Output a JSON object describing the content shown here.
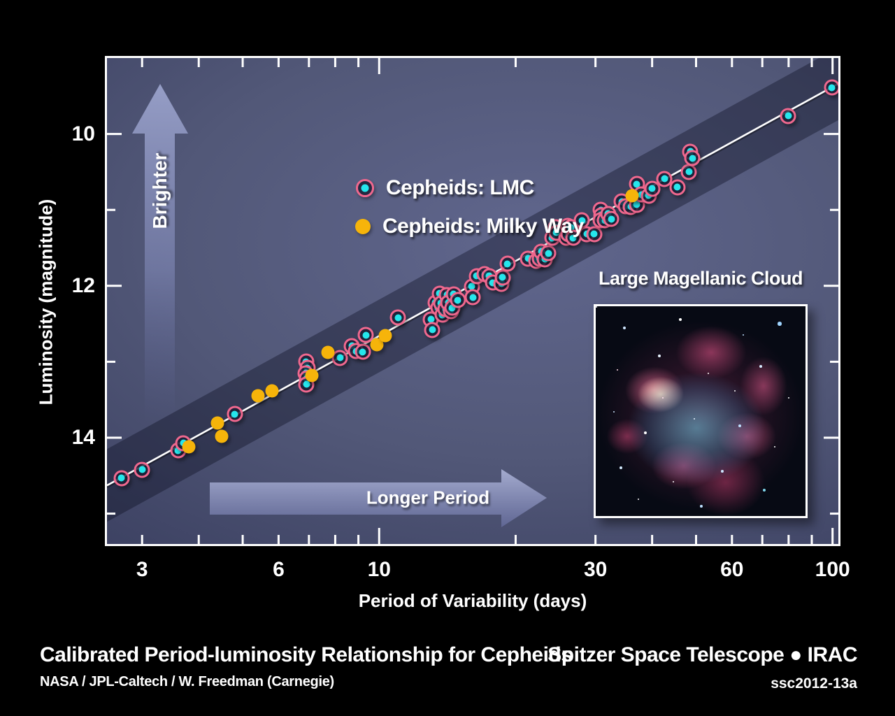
{
  "colors": {
    "background": "#000000",
    "lmc_dot": "#25e6ec",
    "lmc_ring": "#f0688e",
    "milky_way_dot": "#f6b40a",
    "trend_line": "#ffffff",
    "arrow_fill": "#8d95c2"
  },
  "legend": {
    "items": [
      {
        "label": "Cepheids: LMC",
        "marker": "cyan-dot-pink-ring"
      },
      {
        "label": "Cepheids: Milky Way",
        "marker": "yellow-dot"
      }
    ]
  },
  "annotations": {
    "brighter_arrow_label": "Brighter",
    "longer_period_arrow_label": "Longer Period",
    "inset_title": "Large Magellanic Cloud"
  },
  "footer": {
    "title": "Calibrated Period-luminosity Relationship for Cepheids",
    "credit": "NASA / JPL-Caltech / W. Freedman (Carnegie)",
    "mission": "Spitzer Space Telescope ● IRAC",
    "release_id": "ssc2012-13a"
  },
  "chart_data": {
    "type": "scatter",
    "x_scale": "log",
    "xlabel": "Period of Variability (days)",
    "ylabel": "Luminosity (magnitude)",
    "y_axis_inverted": true,
    "xlim": [
      2.51,
      103
    ],
    "ylim_mag": [
      9.0,
      15.4
    ],
    "x_ticks": [
      3,
      4,
      5,
      6,
      7,
      8,
      9,
      10,
      20,
      30,
      40,
      50,
      60,
      70,
      80,
      90,
      100
    ],
    "x_major_ticks": [
      10,
      100
    ],
    "x_tick_labels": [
      3,
      6,
      10,
      30,
      60,
      100
    ],
    "y_ticks": [
      9,
      10,
      11,
      12,
      13,
      14,
      15
    ],
    "y_major_ticks": [
      10,
      12,
      14
    ],
    "y_tick_labels": [
      10,
      12,
      14
    ],
    "trend_line": {
      "mag_at_10_days": 12.66,
      "slope_mag_per_decade": -3.28,
      "band_halfwidth_mag": 0.35
    },
    "series": [
      {
        "name": "Cepheids: LMC",
        "marker": "cyan-dot-pink-ring",
        "points": [
          [
            2.7,
            14.53
          ],
          [
            3.0,
            14.42
          ],
          [
            3.6,
            14.17
          ],
          [
            3.7,
            14.07
          ],
          [
            4.8,
            13.69
          ],
          [
            6.9,
            13.0
          ],
          [
            6.95,
            13.08
          ],
          [
            6.89,
            13.15
          ],
          [
            6.92,
            13.22
          ],
          [
            6.91,
            13.3
          ],
          [
            8.2,
            12.95
          ],
          [
            8.7,
            12.79
          ],
          [
            8.9,
            12.86
          ],
          [
            9.2,
            12.87
          ],
          [
            9.35,
            12.65
          ],
          [
            11.0,
            12.42
          ],
          [
            13.0,
            12.44
          ],
          [
            13.1,
            12.58
          ],
          [
            13.3,
            12.22
          ],
          [
            13.5,
            12.29
          ],
          [
            13.6,
            12.1
          ],
          [
            13.7,
            12.23
          ],
          [
            13.8,
            12.38
          ],
          [
            14.0,
            12.31
          ],
          [
            14.1,
            12.12
          ],
          [
            14.2,
            12.22
          ],
          [
            14.4,
            12.33
          ],
          [
            14.5,
            12.29
          ],
          [
            14.6,
            12.11
          ],
          [
            14.9,
            12.19
          ],
          [
            16.0,
            12.01
          ],
          [
            16.1,
            12.15
          ],
          [
            16.4,
            11.87
          ],
          [
            17.1,
            11.85
          ],
          [
            17.5,
            11.87
          ],
          [
            17.8,
            11.96
          ],
          [
            18.6,
            11.97
          ],
          [
            18.7,
            11.89
          ],
          [
            19.2,
            11.71
          ],
          [
            21.3,
            11.64
          ],
          [
            22.2,
            11.67
          ],
          [
            22.6,
            11.64
          ],
          [
            22.8,
            11.55
          ],
          [
            23.2,
            11.65
          ],
          [
            23.6,
            11.57
          ],
          [
            24.1,
            11.37
          ],
          [
            24.5,
            11.23
          ],
          [
            24.6,
            11.3
          ],
          [
            25.9,
            11.37
          ],
          [
            26.1,
            11.21
          ],
          [
            26.2,
            11.32
          ],
          [
            26.5,
            11.23
          ],
          [
            26.8,
            11.37
          ],
          [
            28.0,
            11.14
          ],
          [
            28.7,
            11.32
          ],
          [
            29.8,
            11.32
          ],
          [
            30.8,
            11.0
          ],
          [
            30.9,
            11.07
          ],
          [
            30.8,
            11.14
          ],
          [
            31.5,
            11.14
          ],
          [
            32.0,
            11.05
          ],
          [
            32.5,
            11.12
          ],
          [
            34.3,
            10.89
          ],
          [
            35.0,
            10.95
          ],
          [
            35.9,
            10.96
          ],
          [
            37.0,
            10.93
          ],
          [
            37.0,
            10.66
          ],
          [
            37.9,
            10.8
          ],
          [
            39.3,
            10.81
          ],
          [
            40.0,
            10.72
          ],
          [
            42.6,
            10.59
          ],
          [
            45.5,
            10.7
          ],
          [
            48.2,
            10.5
          ],
          [
            48.6,
            10.23
          ],
          [
            49.1,
            10.32
          ],
          [
            79.9,
            9.76
          ],
          [
            99.7,
            9.39
          ]
        ]
      },
      {
        "name": "Cepheids: Milky Way",
        "marker": "yellow-dot",
        "points": [
          [
            3.8,
            14.12
          ],
          [
            4.4,
            13.81
          ],
          [
            4.5,
            13.98
          ],
          [
            5.4,
            13.45
          ],
          [
            5.8,
            13.38
          ],
          [
            7.1,
            13.18
          ],
          [
            7.7,
            12.88
          ],
          [
            9.9,
            12.78
          ],
          [
            10.3,
            12.66
          ],
          [
            36.1,
            10.81
          ]
        ]
      }
    ]
  }
}
